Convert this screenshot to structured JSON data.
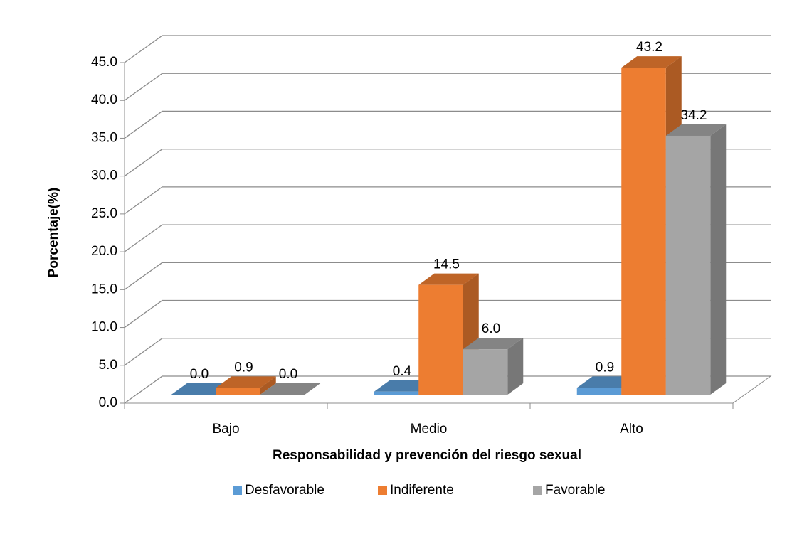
{
  "chart_data": {
    "type": "bar3d",
    "categories": [
      "Bajo",
      "Medio",
      "Alto"
    ],
    "series": [
      {
        "name": "Desfavorable",
        "color": "#5b9bd5",
        "values": [
          0.0,
          0.4,
          0.9
        ],
        "value_labels": [
          "0.0",
          "0.4",
          "0.9"
        ]
      },
      {
        "name": "Indiferente",
        "color": "#ed7d31",
        "values": [
          0.9,
          14.5,
          43.2
        ],
        "value_labels": [
          "0.9",
          "14.5",
          "43.2"
        ]
      },
      {
        "name": "Favorable",
        "color": "#a5a5a5",
        "values": [
          0.0,
          6.0,
          34.2
        ],
        "value_labels": [
          "0.0",
          "6.0",
          "34.2"
        ]
      }
    ],
    "x_label": "Responsabilidad y prevención del riesgo sexual",
    "y_label": "Porcentaje(%)",
    "ylim": [
      0,
      45
    ],
    "yticks": [
      {
        "value": 0,
        "label": "0.0"
      },
      {
        "value": 5,
        "label": "5.0"
      },
      {
        "value": 10,
        "label": "10.0"
      },
      {
        "value": 15,
        "label": "15.0"
      },
      {
        "value": 20,
        "label": "20.0"
      },
      {
        "value": 25,
        "label": "25.0"
      },
      {
        "value": 30,
        "label": "30.0"
      },
      {
        "value": 35,
        "label": "35.0"
      },
      {
        "value": 40,
        "label": "40.0"
      },
      {
        "value": 45,
        "label": "45.0"
      }
    ],
    "grid": true,
    "legend": "bottom"
  }
}
